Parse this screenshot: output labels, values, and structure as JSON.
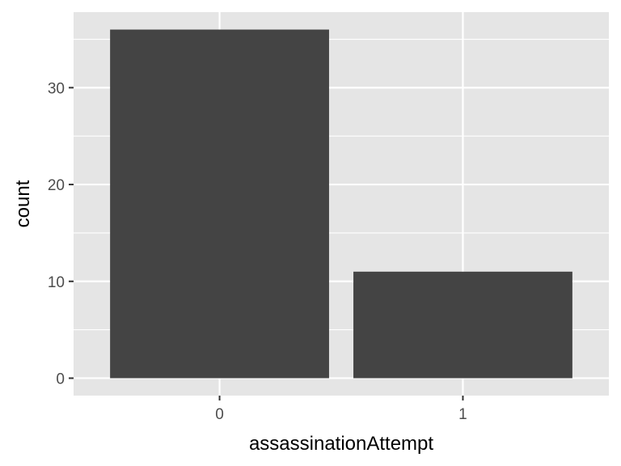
{
  "chart_data": {
    "type": "bar",
    "title": "",
    "xlabel": "assassinationAttempt",
    "ylabel": "count",
    "categories": [
      "0",
      "1"
    ],
    "values": [
      36,
      11
    ],
    "ylim": [
      -1.8,
      37.8
    ],
    "yticks": [
      0,
      10,
      20,
      30
    ],
    "grid": true,
    "colors": {
      "bar": "#444444",
      "panel": "#e5e5e5",
      "grid": "#ffffff",
      "tick_text": "#4d4d4d",
      "axis_title": "#000000"
    }
  }
}
